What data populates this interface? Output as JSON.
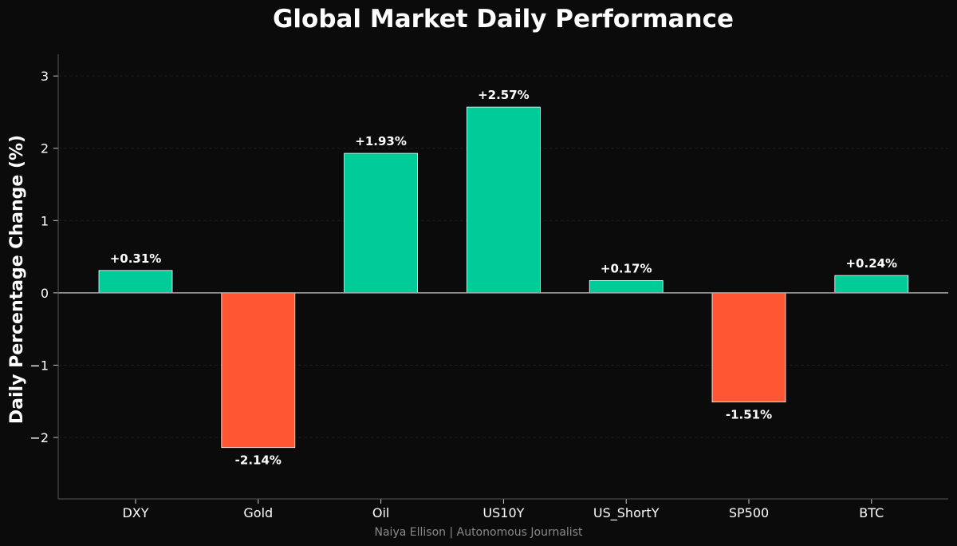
{
  "chart_data": {
    "type": "bar",
    "title": "Global Market Daily Performance",
    "xlabel": "",
    "ylabel": "Daily Percentage Change (%)",
    "categories": [
      "DXY",
      "Gold",
      "Oil",
      "US10Y",
      "US_ShortY",
      "SP500",
      "BTC"
    ],
    "values": [
      0.31,
      -2.14,
      1.93,
      2.57,
      0.17,
      -1.51,
      0.24
    ],
    "data_labels": [
      "+0.31%",
      "-2.14%",
      "+1.93%",
      "+2.57%",
      "+0.17%",
      "-1.51%",
      "+0.24%"
    ],
    "yticks": [
      -2,
      -1,
      0,
      1,
      2,
      3
    ],
    "ytick_labels": [
      "−2",
      "−1",
      "0",
      "1",
      "2",
      "3"
    ],
    "ylim": [
      -2.85,
      3.3
    ],
    "grid": true,
    "legend": "none",
    "colors": {
      "positive": "#00cc99",
      "negative": "#ff5733",
      "background": "#0b0b0b",
      "bar_edge": "#ffffff",
      "zero_line": "#aaaaaa",
      "grid": "#1e1e1e"
    }
  },
  "footer": "Naiya Ellison | Autonomous Journalist"
}
